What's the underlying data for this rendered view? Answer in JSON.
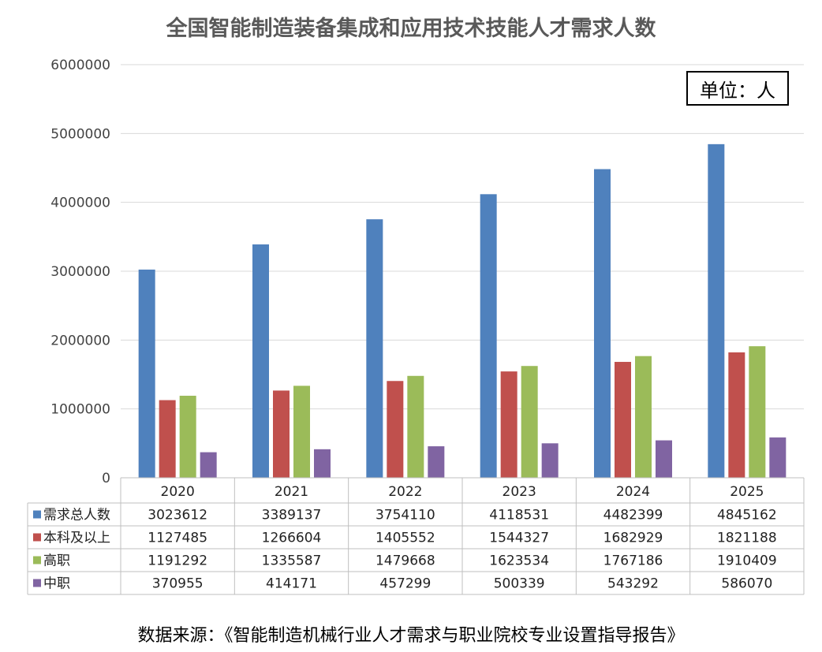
{
  "title": "全国智能制造装备集成和应用技术技能人才需求人数",
  "unit_label": "单位：人",
  "source": "数据来源：《智能制造机械行业人才需求与职业院校专业设置指导报告》",
  "chart_data": {
    "type": "bar",
    "categories": [
      "2020",
      "2021",
      "2022",
      "2023",
      "2024",
      "2025"
    ],
    "series": [
      {
        "name": "需求总人数",
        "color": "#4F81BD",
        "values": [
          3023612,
          3389137,
          3754110,
          4118531,
          4482399,
          4845162
        ]
      },
      {
        "name": "本科及以上",
        "color": "#C0504D",
        "values": [
          1127485,
          1266604,
          1405552,
          1544327,
          1682929,
          1821188
        ]
      },
      {
        "name": "高职",
        "color": "#9BBB59",
        "values": [
          1191292,
          1335587,
          1479668,
          1623534,
          1767186,
          1910409
        ]
      },
      {
        "name": "中职",
        "color": "#8064A2",
        "values": [
          370955,
          414171,
          457299,
          500339,
          543292,
          586070
        ]
      }
    ],
    "ylim": [
      0,
      6000000
    ],
    "yticks": [
      0,
      1000000,
      2000000,
      3000000,
      4000000,
      5000000,
      6000000
    ],
    "grid": true,
    "legend": "data-table"
  }
}
